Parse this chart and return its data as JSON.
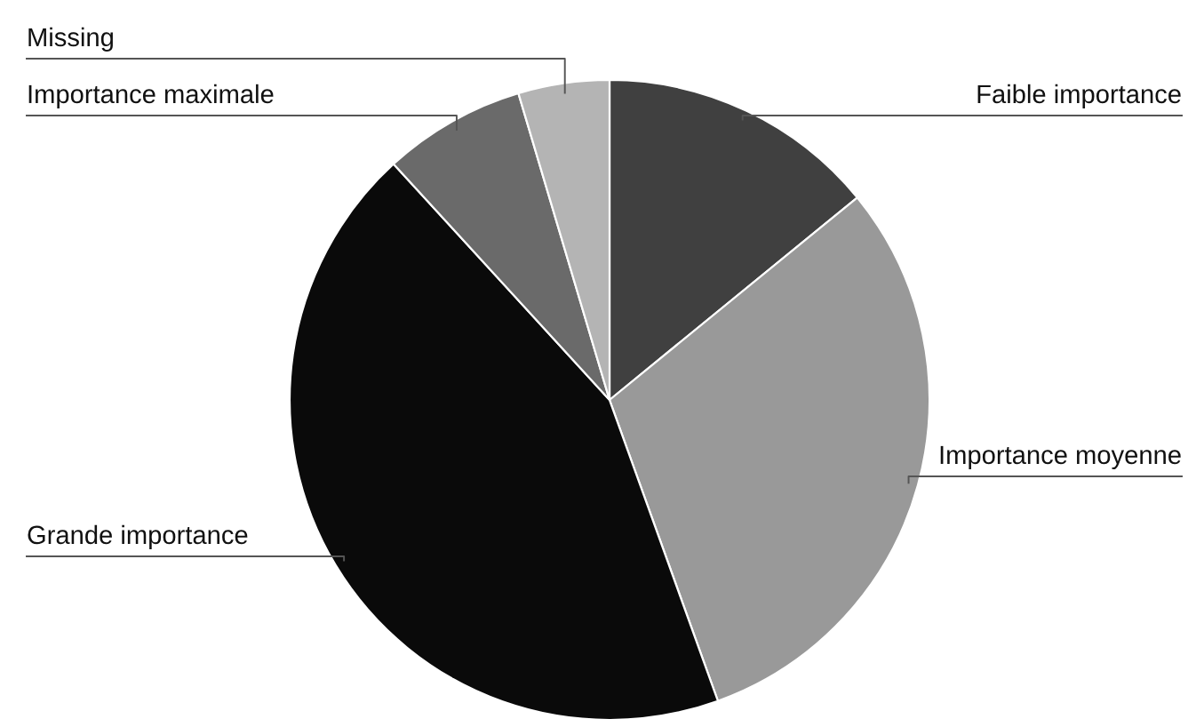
{
  "chart_data": {
    "type": "pie",
    "categories": [
      "Faible importance",
      "Importance moyenne",
      "Grande importance",
      "Importance maximale",
      "Missing"
    ],
    "values": [
      14.1,
      30.4,
      43.7,
      7.2,
      4.6
    ],
    "colors": [
      "#404040",
      "#999999",
      "#0a0a0a",
      "#6a6a6a",
      "#b4b4b4"
    ],
    "legend": false
  }
}
